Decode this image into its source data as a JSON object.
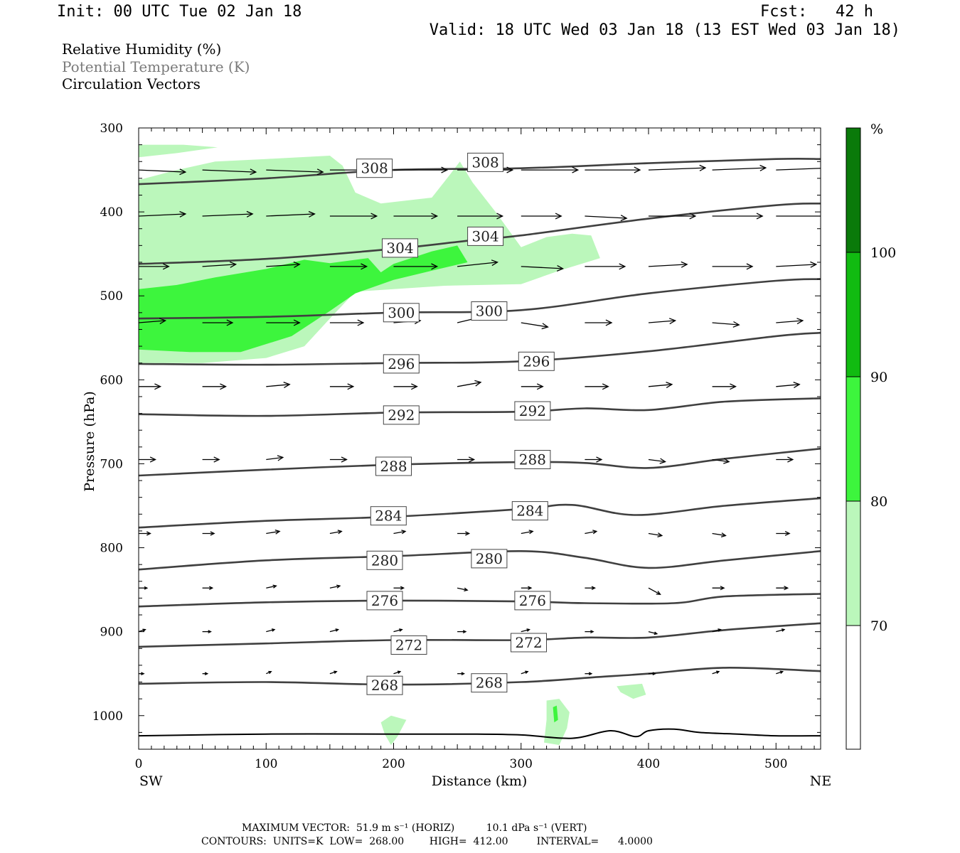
{
  "header": {
    "init": "Init: 00 UTC Tue 02 Jan 18",
    "fcst": "Fcst:   42 h",
    "valid": "Valid: 18 UTC Wed 03 Jan 18 (13 EST Wed 03 Jan 18)"
  },
  "legend": {
    "rh": "Relative Humidity (%)",
    "theta": "Potential Temperature (K)",
    "circulation": "Circulation Vectors"
  },
  "colors": {
    "rh_70_80": "#bbf7bb",
    "rh_80_90": "#3df53d",
    "rh_90_100": "#11bb11",
    "rh_100_plus": "#0a7a0a",
    "theta_line": "#404040",
    "vector": "#000000"
  },
  "chart_data": {
    "type": "cross-section",
    "ylabel": "Pressure (hPa)",
    "xlabel": "Distance (km)",
    "x_start_label": "SW",
    "x_end_label": "NE",
    "xlim": [
      0,
      535
    ],
    "ylim": [
      1040,
      300
    ],
    "x_ticks": [
      0,
      100,
      200,
      300,
      400,
      500
    ],
    "y_ticks": [
      300,
      400,
      500,
      600,
      700,
      800,
      900,
      1000
    ],
    "colorbar": {
      "unit": "%",
      "levels": [
        70,
        80,
        90,
        100
      ]
    },
    "theta_contours": [
      {
        "value": 308,
        "points": [
          [
            0,
            367
          ],
          [
            100,
            360
          ],
          [
            200,
            350
          ],
          [
            300,
            348
          ],
          [
            400,
            342
          ],
          [
            500,
            337
          ],
          [
            535,
            337
          ]
        ],
        "labels": [
          [
            185,
            348
          ],
          [
            272,
            341
          ]
        ]
      },
      {
        "value": 304,
        "points": [
          [
            0,
            462
          ],
          [
            100,
            456
          ],
          [
            200,
            444
          ],
          [
            260,
            434
          ],
          [
            300,
            428
          ],
          [
            400,
            408
          ],
          [
            500,
            392
          ],
          [
            535,
            390
          ]
        ],
        "labels": [
          [
            205,
            443
          ],
          [
            272,
            429
          ]
        ]
      },
      {
        "value": 300,
        "points": [
          [
            0,
            527
          ],
          [
            100,
            525
          ],
          [
            200,
            520
          ],
          [
            300,
            517
          ],
          [
            400,
            497
          ],
          [
            500,
            482
          ],
          [
            535,
            480
          ]
        ],
        "labels": [
          [
            206,
            520
          ],
          [
            275,
            518
          ]
        ]
      },
      {
        "value": 296,
        "points": [
          [
            0,
            581
          ],
          [
            100,
            582
          ],
          [
            200,
            580
          ],
          [
            300,
            578
          ],
          [
            400,
            566
          ],
          [
            500,
            548
          ],
          [
            535,
            544
          ]
        ],
        "labels": [
          [
            206,
            581
          ],
          [
            312,
            578
          ]
        ]
      },
      {
        "value": 292,
        "points": [
          [
            0,
            641
          ],
          [
            100,
            643
          ],
          [
            200,
            639
          ],
          [
            300,
            638
          ],
          [
            350,
            634
          ],
          [
            400,
            636
          ],
          [
            460,
            626
          ],
          [
            535,
            622
          ]
        ],
        "labels": [
          [
            206,
            642
          ],
          [
            309,
            637
          ]
        ]
      },
      {
        "value": 288,
        "points": [
          [
            0,
            714
          ],
          [
            100,
            707
          ],
          [
            200,
            701
          ],
          [
            300,
            698
          ],
          [
            350,
            699
          ],
          [
            400,
            705
          ],
          [
            460,
            694
          ],
          [
            535,
            682
          ]
        ],
        "labels": [
          [
            200,
            703
          ],
          [
            309,
            695
          ]
        ]
      },
      {
        "value": 284,
        "points": [
          [
            0,
            776
          ],
          [
            100,
            768
          ],
          [
            200,
            763
          ],
          [
            300,
            754
          ],
          [
            340,
            749
          ],
          [
            390,
            761
          ],
          [
            460,
            750
          ],
          [
            535,
            741
          ]
        ],
        "labels": [
          [
            196,
            762
          ],
          [
            307,
            756
          ]
        ]
      },
      {
        "value": 280,
        "points": [
          [
            0,
            826
          ],
          [
            100,
            815
          ],
          [
            200,
            810
          ],
          [
            300,
            804
          ],
          [
            350,
            812
          ],
          [
            400,
            824
          ],
          [
            460,
            815
          ],
          [
            535,
            804
          ]
        ],
        "labels": [
          [
            193,
            815
          ],
          [
            275,
            813
          ]
        ]
      },
      {
        "value": 276,
        "points": [
          [
            0,
            870
          ],
          [
            100,
            865
          ],
          [
            200,
            863
          ],
          [
            300,
            864
          ],
          [
            350,
            866
          ],
          [
            420,
            866
          ],
          [
            460,
            858
          ],
          [
            535,
            855
          ]
        ],
        "labels": [
          [
            193,
            863
          ],
          [
            309,
            863
          ]
        ]
      },
      {
        "value": 272,
        "points": [
          [
            0,
            918
          ],
          [
            100,
            914
          ],
          [
            200,
            910
          ],
          [
            300,
            910
          ],
          [
            350,
            907
          ],
          [
            400,
            907
          ],
          [
            460,
            898
          ],
          [
            535,
            890
          ]
        ],
        "labels": [
          [
            212,
            916
          ],
          [
            306,
            913
          ]
        ]
      },
      {
        "value": 268,
        "points": [
          [
            0,
            962
          ],
          [
            100,
            960
          ],
          [
            200,
            963
          ],
          [
            300,
            960
          ],
          [
            360,
            954
          ],
          [
            400,
            950
          ],
          [
            460,
            943
          ],
          [
            535,
            947
          ]
        ],
        "labels": [
          [
            193,
            964
          ],
          [
            275,
            961
          ]
        ]
      }
    ],
    "rh_regions": [
      {
        "category": "70-80",
        "polygon": [
          [
            0,
            362
          ],
          [
            30,
            350
          ],
          [
            60,
            340
          ],
          [
            100,
            337
          ],
          [
            150,
            333
          ],
          [
            160,
            345
          ],
          [
            170,
            377
          ],
          [
            190,
            390
          ],
          [
            230,
            383
          ],
          [
            245,
            354
          ],
          [
            252,
            340
          ],
          [
            262,
            365
          ],
          [
            280,
            400
          ],
          [
            300,
            442
          ],
          [
            320,
            430
          ],
          [
            340,
            426
          ],
          [
            355,
            428
          ],
          [
            362,
            455
          ],
          [
            330,
            470
          ],
          [
            300,
            486
          ],
          [
            240,
            488
          ],
          [
            200,
            492
          ],
          [
            170,
            495
          ],
          [
            150,
            527
          ],
          [
            130,
            560
          ],
          [
            100,
            574
          ],
          [
            50,
            580
          ],
          [
            0,
            580
          ]
        ]
      },
      {
        "category": "70-80",
        "polygon": [
          [
            0,
            320
          ],
          [
            35,
            320
          ],
          [
            62,
            323
          ],
          [
            30,
            330
          ],
          [
            0,
            335
          ]
        ]
      },
      {
        "category": "80-90",
        "polygon": [
          [
            0,
            492
          ],
          [
            30,
            487
          ],
          [
            60,
            478
          ],
          [
            100,
            468
          ],
          [
            130,
            457
          ],
          [
            150,
            461
          ],
          [
            180,
            455
          ],
          [
            190,
            472
          ],
          [
            200,
            462
          ],
          [
            230,
            447
          ],
          [
            250,
            440
          ],
          [
            258,
            460
          ],
          [
            230,
            470
          ],
          [
            200,
            481
          ],
          [
            170,
            497
          ],
          [
            150,
            518
          ],
          [
            120,
            548
          ],
          [
            80,
            567
          ],
          [
            40,
            567
          ],
          [
            0,
            564
          ]
        ]
      },
      {
        "category": "70-80",
        "polygon": [
          [
            190,
            1008
          ],
          [
            198,
            1000
          ],
          [
            210,
            1005
          ],
          [
            203,
            1025
          ],
          [
            198,
            1035
          ],
          [
            193,
            1022
          ]
        ]
      },
      {
        "category": "70-80",
        "polygon": [
          [
            320,
            982
          ],
          [
            330,
            980
          ],
          [
            338,
            996
          ],
          [
            336,
            1015
          ],
          [
            330,
            1035
          ],
          [
            318,
            1032
          ],
          [
            320,
            1005
          ]
        ]
      },
      {
        "category": "80-90",
        "polygon": [
          [
            325,
            990
          ],
          [
            328,
            988
          ],
          [
            329,
            1005
          ],
          [
            326,
            1008
          ]
        ]
      },
      {
        "category": "70-80",
        "polygon": [
          [
            375,
            965
          ],
          [
            395,
            962
          ],
          [
            398,
            975
          ],
          [
            388,
            980
          ],
          [
            378,
            972
          ]
        ]
      }
    ],
    "vector_rows": [
      {
        "p": 350,
        "x": [
          0,
          50,
          100,
          150,
          200,
          250,
          300,
          350,
          400,
          450,
          500
        ],
        "u": [
          28,
          32,
          34,
          33,
          32,
          33,
          34,
          33,
          34,
          32,
          34
        ],
        "w": [
          1,
          1,
          1,
          0,
          0,
          0,
          0,
          0,
          -1,
          -1,
          -1
        ]
      },
      {
        "p": 405,
        "x": [
          0,
          50,
          100,
          150,
          200,
          250,
          300,
          350,
          400,
          450,
          500
        ],
        "u": [
          28,
          30,
          29,
          28,
          26,
          27,
          24,
          25,
          28,
          30,
          30
        ],
        "w": [
          -1,
          -1,
          -1,
          0,
          0,
          0,
          0,
          1,
          0,
          0,
          0
        ]
      },
      {
        "p": 465,
        "x": [
          0,
          50,
          100,
          150,
          200,
          250,
          300,
          350,
          400,
          450,
          500
        ],
        "u": [
          18,
          20,
          20,
          22,
          26,
          24,
          25,
          24,
          23,
          24,
          24
        ],
        "w": [
          0,
          -1,
          -1,
          0,
          0,
          -2,
          1,
          0,
          -1,
          0,
          -1
        ]
      },
      {
        "p": 532,
        "x": [
          0,
          50,
          100,
          150,
          200,
          250,
          300,
          350,
          400,
          450,
          500
        ],
        "u": [
          16,
          18,
          20,
          20,
          16,
          16,
          16,
          16,
          16,
          16,
          16
        ],
        "w": [
          -1,
          0,
          0,
          0,
          -1,
          -3,
          2,
          0,
          -1,
          1,
          -1
        ]
      },
      {
        "p": 608,
        "x": [
          0,
          50,
          100,
          150,
          200,
          250,
          300,
          350,
          400,
          450,
          500
        ],
        "u": [
          13,
          14,
          14,
          14,
          14,
          14,
          13,
          14,
          14,
          14,
          14
        ],
        "w": [
          0,
          0,
          -1,
          0,
          0,
          -2,
          0,
          0,
          -1,
          0,
          -1
        ]
      },
      {
        "p": 695,
        "x": [
          0,
          50,
          100,
          150,
          200,
          250,
          300,
          350,
          400,
          450,
          500
        ],
        "u": [
          10,
          10,
          10,
          10,
          10,
          10,
          10,
          10,
          10,
          10,
          10
        ],
        "w": [
          0,
          0,
          -1,
          0,
          0,
          0,
          0,
          0,
          1,
          1,
          0
        ]
      },
      {
        "p": 783,
        "x": [
          0,
          50,
          100,
          150,
          200,
          250,
          300,
          350,
          400,
          450,
          500
        ],
        "u": [
          7,
          7,
          8,
          7,
          7,
          7,
          7,
          7,
          8,
          8,
          8
        ],
        "w": [
          0,
          0,
          -1,
          -1,
          -1,
          0,
          -1,
          -1,
          1,
          1,
          0
        ]
      },
      {
        "p": 848,
        "x": [
          0,
          50,
          100,
          150,
          200,
          250,
          300,
          350,
          400,
          450,
          500
        ],
        "u": [
          5,
          6,
          6,
          6,
          6,
          6,
          6,
          6,
          7,
          7,
          7
        ],
        "w": [
          0,
          0,
          -1,
          -1,
          0,
          1,
          0,
          0,
          3,
          0,
          0
        ]
      },
      {
        "p": 900,
        "x": [
          0,
          50,
          100,
          150,
          200,
          250,
          300,
          350,
          400,
          450,
          500
        ],
        "u": [
          4,
          5,
          5,
          5,
          5,
          5,
          5,
          5,
          5,
          5,
          5
        ],
        "w": [
          -1,
          0,
          -1,
          -1,
          -1,
          0,
          -1,
          0,
          1,
          -1,
          -1
        ]
      },
      {
        "p": 950,
        "x": [
          0,
          50,
          100,
          150,
          200,
          250,
          300,
          350,
          400,
          450,
          500
        ],
        "u": [
          3,
          3,
          3,
          4,
          4,
          4,
          4,
          4,
          4,
          4,
          4
        ],
        "w": [
          0,
          0,
          -1,
          -1,
          -1,
          0,
          -1,
          0,
          0,
          -1,
          -1
        ]
      }
    ],
    "ground": [
      [
        0,
        1024
      ],
      [
        100,
        1022
      ],
      [
        200,
        1022
      ],
      [
        260,
        1022
      ],
      [
        300,
        1023
      ],
      [
        340,
        1027
      ],
      [
        370,
        1018
      ],
      [
        390,
        1025
      ],
      [
        400,
        1018
      ],
      [
        420,
        1016
      ],
      [
        440,
        1020
      ],
      [
        470,
        1022
      ],
      [
        500,
        1024
      ],
      [
        535,
        1024
      ]
    ],
    "footer": {
      "max_vector": "MAXIMUM VECTOR:  51.9 m s⁻¹ (HORIZ)          10.1 dPa s⁻¹ (VERT)",
      "contours": "CONTOURS:  UNITS=K  LOW=  268.00        HIGH=  412.00         INTERVAL=      4.0000"
    }
  }
}
